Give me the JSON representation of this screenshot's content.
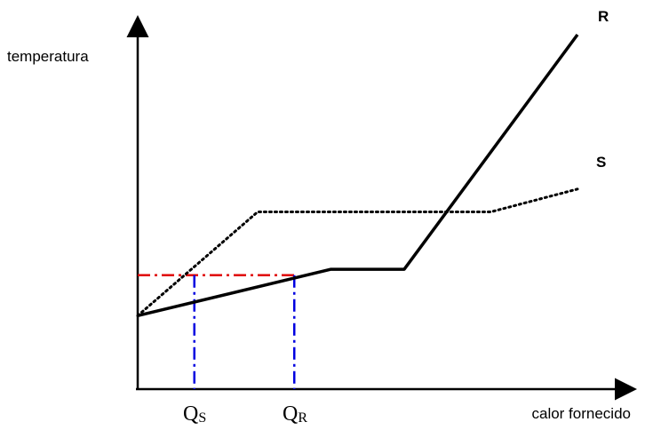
{
  "chart_data": {
    "type": "line",
    "ylabel": "temperatura",
    "xlabel": "calor fornecido",
    "series": [
      {
        "name": "R",
        "style": "solid",
        "color": "#000000",
        "points": [
          [
            0,
            0.87
          ],
          [
            2.9,
            1.42
          ],
          [
            4.0,
            1.42
          ],
          [
            6.6,
            4.2
          ]
        ]
      },
      {
        "name": "S",
        "style": "dotted",
        "color": "#000000",
        "points": [
          [
            0,
            0.87
          ],
          [
            1.8,
            2.1
          ],
          [
            5.3,
            2.1
          ],
          [
            6.6,
            2.37
          ]
        ]
      }
    ],
    "guides": {
      "horizontal": {
        "y": 1.35,
        "x_from": 0,
        "x_to": 2.35,
        "color": "#e00000",
        "style": "dashdot"
      },
      "verticals": [
        {
          "x": 0.85,
          "y_to": 1.35,
          "label": "Q",
          "subscript": "S",
          "color": "#0000e0",
          "style": "dashdot"
        },
        {
          "x": 2.35,
          "y_to": 1.35,
          "label": "Q",
          "subscript": "R",
          "color": "#0000e0",
          "style": "dashdot"
        }
      ]
    },
    "xlim": [
      0,
      7
    ],
    "ylim": [
      0,
      4.5
    ],
    "grid": false
  }
}
